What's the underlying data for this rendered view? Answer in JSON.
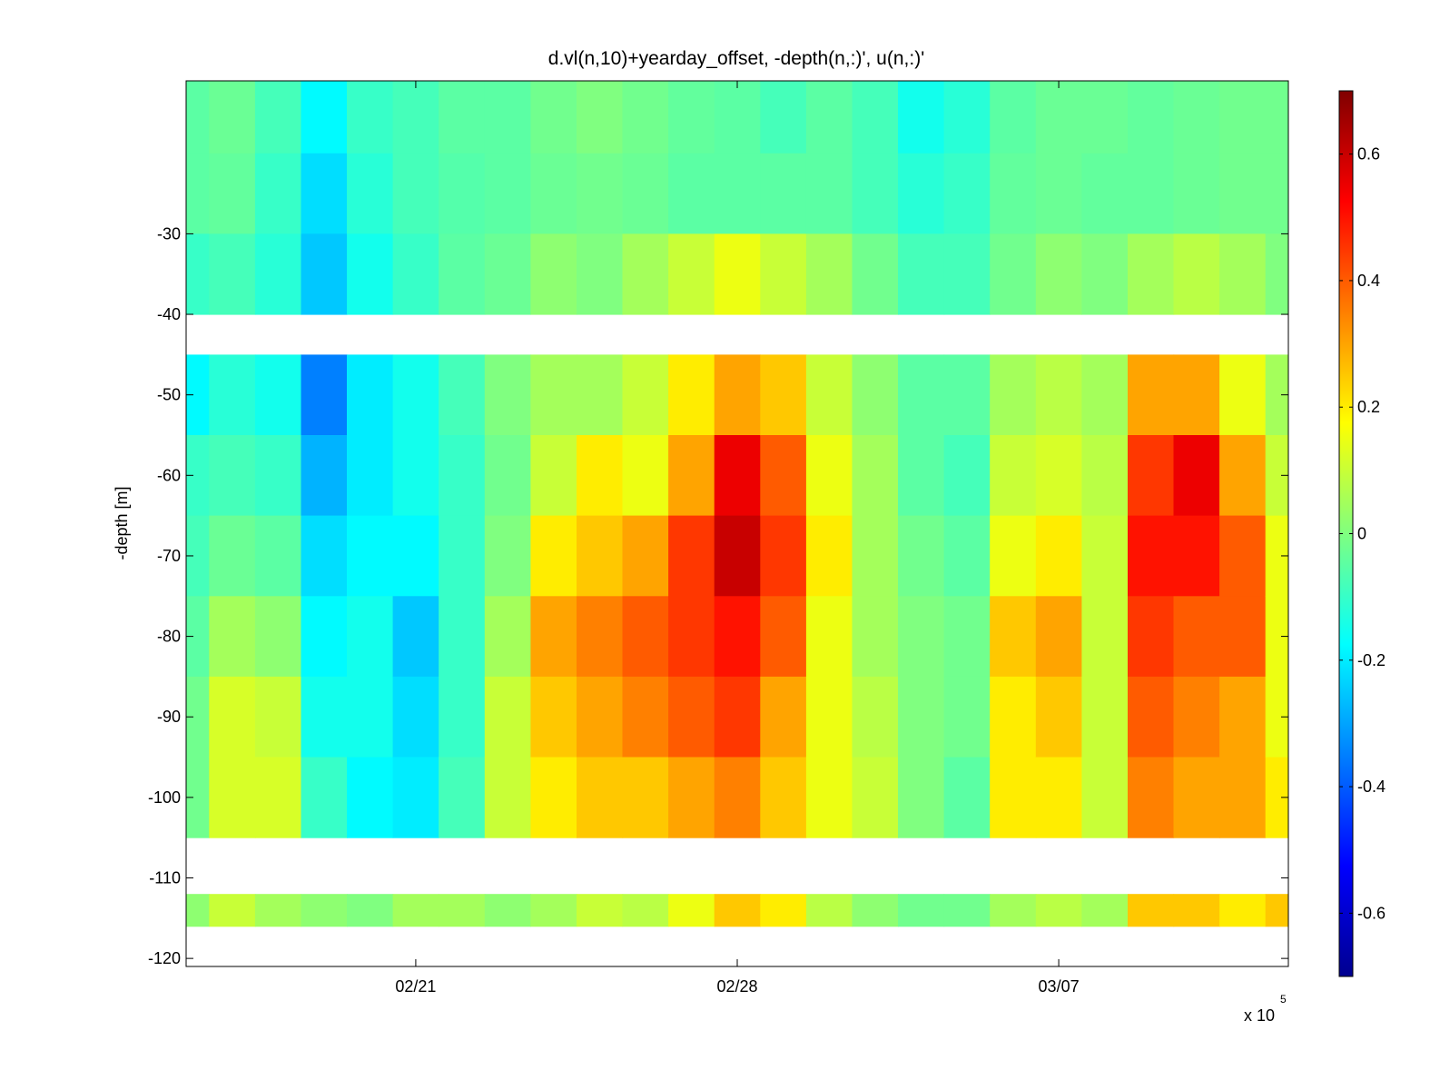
{
  "chart_data": {
    "type": "heatmap",
    "title": "d.vl(n,10)+yearday_offset, -depth(n,:)', u(n,:)'",
    "xlabel": "",
    "ylabel": "-depth [m]",
    "x_exponent_label": "x 10",
    "x_exponent_power": "5",
    "xlim": [
      "02/16",
      "03/12"
    ],
    "x_ticks": [
      "02/21",
      "02/28",
      "03/07"
    ],
    "ylim": [
      -121,
      -11
    ],
    "y_ticks": [
      -30,
      -40,
      -50,
      -60,
      -70,
      -80,
      -90,
      -100,
      -110,
      -120
    ],
    "grid": false,
    "colorbar": {
      "placement": "right",
      "colormap": "jet",
      "clim": [
        -0.7,
        0.7
      ],
      "ticks": [
        0.6,
        0.4,
        0.2,
        0,
        -0.2,
        -0.4,
        -0.6
      ]
    },
    "depth_bin_centers": [
      -15,
      -25,
      -35,
      -50,
      -60,
      -70,
      -80,
      -90,
      -100,
      -115
    ],
    "dates": [
      "02/16",
      "02/17",
      "02/18",
      "02/19",
      "02/20",
      "02/21",
      "02/22",
      "02/23",
      "02/24",
      "02/25",
      "02/26",
      "02/27",
      "02/28",
      "03/01",
      "03/02",
      "03/03",
      "03/04",
      "03/05",
      "03/06",
      "03/07",
      "03/08",
      "03/09",
      "03/10",
      "03/11",
      "03/12"
    ],
    "u": [
      [
        -0.05,
        -0.05,
        -0.1,
        -0.18,
        -0.1,
        -0.08,
        -0.05,
        -0.02,
        -0.02,
        0.02
      ],
      [
        -0.03,
        -0.04,
        -0.08,
        -0.12,
        -0.08,
        -0.03,
        0.05,
        0.12,
        0.12,
        0.1
      ],
      [
        -0.08,
        -0.1,
        -0.12,
        -0.15,
        -0.1,
        -0.05,
        0.02,
        0.1,
        0.12,
        0.05
      ],
      [
        -0.18,
        -0.22,
        -0.25,
        -0.35,
        -0.28,
        -0.22,
        -0.18,
        -0.15,
        -0.1,
        0.02
      ],
      [
        -0.1,
        -0.12,
        -0.15,
        -0.2,
        -0.2,
        -0.18,
        -0.15,
        -0.15,
        -0.18,
        0.0
      ],
      [
        -0.08,
        -0.08,
        -0.1,
        -0.15,
        -0.15,
        -0.18,
        -0.25,
        -0.22,
        -0.2,
        0.05
      ],
      [
        -0.05,
        -0.06,
        -0.05,
        -0.08,
        -0.1,
        -0.1,
        -0.1,
        -0.1,
        -0.08,
        0.05
      ],
      [
        -0.05,
        -0.05,
        -0.03,
        0.0,
        -0.02,
        0.0,
        0.05,
        0.1,
        0.1,
        0.02
      ],
      [
        -0.02,
        -0.03,
        0.02,
        0.05,
        0.1,
        0.2,
        0.3,
        0.25,
        0.2,
        0.05
      ],
      [
        0.0,
        -0.02,
        0.0,
        0.05,
        0.2,
        0.25,
        0.35,
        0.3,
        0.25,
        0.1
      ],
      [
        -0.02,
        -0.03,
        0.05,
        0.1,
        0.15,
        0.3,
        0.4,
        0.35,
        0.25,
        0.08
      ],
      [
        -0.04,
        -0.05,
        0.1,
        0.2,
        0.3,
        0.45,
        0.45,
        0.4,
        0.3,
        0.15
      ],
      [
        -0.05,
        -0.05,
        0.15,
        0.3,
        0.55,
        0.6,
        0.5,
        0.45,
        0.35,
        0.25
      ],
      [
        -0.08,
        -0.05,
        0.1,
        0.25,
        0.4,
        0.45,
        0.4,
        0.3,
        0.25,
        0.2
      ],
      [
        -0.05,
        -0.05,
        0.05,
        0.1,
        0.15,
        0.2,
        0.15,
        0.15,
        0.15,
        0.08
      ],
      [
        -0.08,
        -0.08,
        -0.02,
        0.02,
        0.05,
        0.05,
        0.05,
        0.08,
        0.1,
        0.02
      ],
      [
        -0.15,
        -0.12,
        -0.08,
        -0.05,
        -0.05,
        -0.02,
        0.0,
        0.0,
        0.0,
        -0.02
      ],
      [
        -0.12,
        -0.1,
        -0.08,
        -0.05,
        -0.08,
        -0.05,
        -0.02,
        -0.02,
        -0.05,
        -0.02
      ],
      [
        -0.05,
        -0.04,
        -0.02,
        0.05,
        0.1,
        0.15,
        0.25,
        0.2,
        0.2,
        0.05
      ],
      [
        -0.03,
        -0.03,
        0.02,
        0.08,
        0.12,
        0.2,
        0.3,
        0.25,
        0.2,
        0.08
      ],
      [
        -0.03,
        -0.04,
        0.0,
        0.05,
        0.08,
        0.1,
        0.1,
        0.1,
        0.1,
        0.05
      ],
      [
        -0.04,
        -0.04,
        0.05,
        0.3,
        0.45,
        0.5,
        0.45,
        0.4,
        0.35,
        0.25
      ],
      [
        -0.03,
        -0.03,
        0.08,
        0.3,
        0.55,
        0.5,
        0.4,
        0.35,
        0.3,
        0.25
      ],
      [
        -0.02,
        -0.02,
        0.05,
        0.15,
        0.3,
        0.4,
        0.4,
        0.3,
        0.3,
        0.2
      ],
      [
        -0.02,
        -0.02,
        0.0,
        0.05,
        0.1,
        0.15,
        0.15,
        0.15,
        0.2,
        0.25
      ]
    ]
  }
}
